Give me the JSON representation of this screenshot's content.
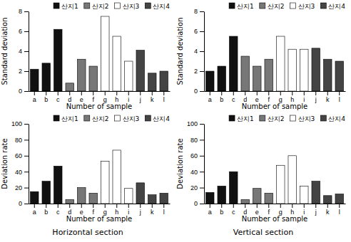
{
  "chart_data": [
    {
      "type": "bar",
      "stacked": true,
      "grid": false,
      "legend": "upper right",
      "x_label": "Number of sample",
      "y_label": "Standard deviation",
      "categories": [
        "a",
        "b",
        "c",
        "d",
        "e",
        "f",
        "g",
        "h",
        "i",
        "j",
        "k",
        "l"
      ],
      "ylim": [
        0,
        8
      ],
      "yticks": [
        0,
        2,
        4,
        6,
        8
      ],
      "series": [
        {
          "name": "산지1",
          "color": "#111111",
          "values": [
            2.2,
            2.8,
            6.2,
            null,
            null,
            null,
            null,
            null,
            null,
            null,
            null,
            null
          ]
        },
        {
          "name": "산지2",
          "color": "#777777",
          "values": [
            null,
            null,
            null,
            0.8,
            3.2,
            2.5,
            null,
            null,
            null,
            null,
            null,
            null
          ]
        },
        {
          "name": "산지3",
          "color": "#ffffff",
          "values": [
            null,
            null,
            null,
            null,
            null,
            null,
            7.5,
            5.5,
            3.0,
            null,
            null,
            null
          ]
        },
        {
          "name": "산지4",
          "color": "#444444",
          "values": [
            null,
            null,
            null,
            null,
            null,
            null,
            null,
            null,
            null,
            4.1,
            1.8,
            2.0
          ]
        }
      ]
    },
    {
      "type": "bar",
      "stacked": true,
      "grid": false,
      "legend": "upper right",
      "x_label": "Number of sample",
      "y_label": "Standard deviation",
      "categories": [
        "a",
        "b",
        "c",
        "d",
        "e",
        "f",
        "g",
        "h",
        "i",
        "j",
        "k",
        "l"
      ],
      "ylim": [
        0,
        8
      ],
      "yticks": [
        0,
        2,
        4,
        6,
        8
      ],
      "series": [
        {
          "name": "산지1",
          "color": "#111111",
          "values": [
            2.0,
            2.5,
            5.5,
            null,
            null,
            null,
            null,
            null,
            null,
            null,
            null,
            null
          ]
        },
        {
          "name": "산지2",
          "color": "#777777",
          "values": [
            null,
            null,
            null,
            3.5,
            2.5,
            3.2,
            null,
            null,
            null,
            null,
            null,
            null
          ]
        },
        {
          "name": "산지3",
          "color": "#ffffff",
          "values": [
            null,
            null,
            null,
            null,
            null,
            null,
            5.5,
            4.2,
            4.2,
            null,
            null,
            null
          ]
        },
        {
          "name": "산지4",
          "color": "#444444",
          "values": [
            null,
            null,
            null,
            null,
            null,
            null,
            null,
            null,
            null,
            4.3,
            3.2,
            3.0
          ]
        }
      ]
    },
    {
      "type": "bar",
      "stacked": true,
      "grid": false,
      "legend": "upper right",
      "x_label": "Number of sample",
      "y_label": "Deviation rate",
      "categories": [
        "a",
        "b",
        "c",
        "d",
        "e",
        "f",
        "g",
        "h",
        "i",
        "j",
        "k",
        "l"
      ],
      "ylim": [
        0,
        100
      ],
      "yticks": [
        0,
        20,
        40,
        60,
        80,
        100
      ],
      "annotations": [
        "Horizontal section"
      ],
      "series": [
        {
          "name": "산지1",
          "color": "#111111",
          "values": [
            15,
            28,
            47,
            null,
            null,
            null,
            null,
            null,
            null,
            null,
            null,
            null
          ]
        },
        {
          "name": "산지2",
          "color": "#777777",
          "values": [
            null,
            null,
            null,
            5,
            20,
            13,
            null,
            null,
            null,
            null,
            null,
            null
          ]
        },
        {
          "name": "산지3",
          "color": "#ffffff",
          "values": [
            null,
            null,
            null,
            null,
            null,
            null,
            53,
            67,
            19,
            null,
            null,
            null
          ]
        },
        {
          "name": "산지4",
          "color": "#444444",
          "values": [
            null,
            null,
            null,
            null,
            null,
            null,
            null,
            null,
            null,
            26,
            11,
            13
          ]
        }
      ]
    },
    {
      "type": "bar",
      "stacked": true,
      "grid": false,
      "legend": "upper right",
      "x_label": "Number of sample",
      "y_label": "Deviation rate",
      "categories": [
        "a",
        "b",
        "c",
        "d",
        "e",
        "f",
        "g",
        "h",
        "i",
        "j",
        "k",
        "l"
      ],
      "ylim": [
        0,
        100
      ],
      "yticks": [
        0,
        20,
        40,
        60,
        80,
        100
      ],
      "annotations": [
        "Vertical section"
      ],
      "series": [
        {
          "name": "산지1",
          "color": "#111111",
          "values": [
            14,
            22,
            40,
            null,
            null,
            null,
            null,
            null,
            null,
            null,
            null,
            null
          ]
        },
        {
          "name": "산지2",
          "color": "#777777",
          "values": [
            null,
            null,
            null,
            5,
            19,
            13,
            null,
            null,
            null,
            null,
            null,
            null
          ]
        },
        {
          "name": "산지3",
          "color": "#ffffff",
          "values": [
            null,
            null,
            null,
            null,
            null,
            null,
            48,
            60,
            22,
            null,
            null,
            null
          ]
        },
        {
          "name": "산지4",
          "color": "#444444",
          "values": [
            null,
            null,
            null,
            null,
            null,
            null,
            null,
            null,
            null,
            28,
            10,
            12
          ]
        }
      ]
    }
  ]
}
